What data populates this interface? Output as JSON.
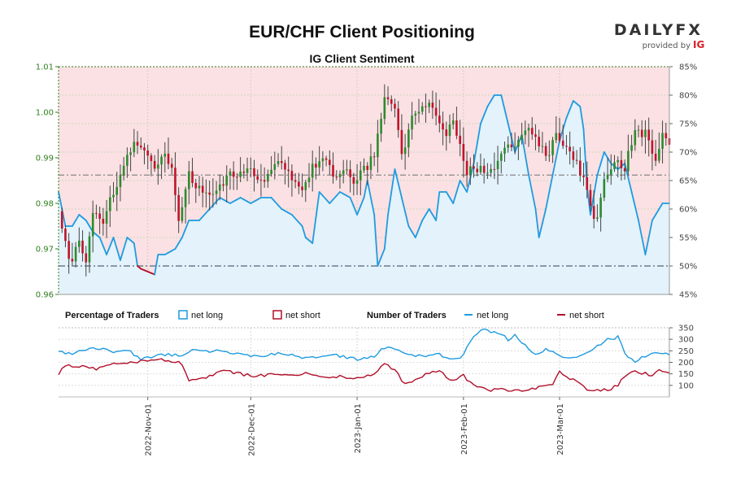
{
  "chart_data": {
    "type": "candlestick",
    "title": "EUR/CHF Client Positioning",
    "subtitle": "IG Client Sentiment",
    "brand": {
      "name": "DAILYFX",
      "tagline": "provided by",
      "partner": "IG"
    },
    "price_axis": {
      "ylim": [
        0.96,
        1.01
      ],
      "ticks": [
        "0.96",
        "0.97",
        "0.98",
        "0.99",
        "1.00",
        "1.01"
      ],
      "color": "#2e7d1e"
    },
    "pct_axis": {
      "ylim": [
        45,
        85
      ],
      "ticks": [
        "45%",
        "50%",
        "55%",
        "60%",
        "65%",
        "70%",
        "75%",
        "80%",
        "85%"
      ]
    },
    "traders_axis": {
      "ylim": [
        50,
        350
      ],
      "ticks": [
        "100",
        "150",
        "200",
        "250",
        "300",
        "350"
      ]
    },
    "x_axis": {
      "ticks": [
        "2022-Nov-01",
        "2022-Dec-01",
        "2023-Jan-01",
        "2023-Feb-01",
        "2023-Mar-01"
      ],
      "tick_days": [
        26,
        56,
        87,
        118,
        146
      ],
      "total_days": 178
    },
    "reference_levels": {
      "price": 0.9862,
      "net_long_pct": 50
    },
    "legend": {
      "percentage_heading": "Percentage of Traders",
      "number_heading": "Number of Traders",
      "net_long": "net long",
      "net_short": "net short"
    },
    "colors": {
      "up": "#2e8b2e",
      "down": "#c0142c",
      "wick": "#444444",
      "net_long": "#1f9be0",
      "net_short": "#b0102a",
      "long_fill": "#e3f2fb",
      "short_fill": "#fbe1e3"
    },
    "price_anchors": [
      [
        0,
        0.9795
      ],
      [
        2,
        0.971
      ],
      [
        4,
        0.9665
      ],
      [
        6,
        0.972
      ],
      [
        8,
        0.968
      ],
      [
        10,
        0.978
      ],
      [
        13,
        0.976
      ],
      [
        16,
        0.983
      ],
      [
        19,
        0.988
      ],
      [
        22,
        0.994
      ],
      [
        25,
        0.991
      ],
      [
        28,
        0.987
      ],
      [
        30,
        0.991
      ],
      [
        33,
        0.988
      ],
      [
        35,
        0.975
      ],
      [
        38,
        0.986
      ],
      [
        41,
        0.983
      ],
      [
        44,
        0.981
      ],
      [
        47,
        0.983
      ],
      [
        50,
        0.986
      ],
      [
        53,
        0.987
      ],
      [
        56,
        0.988
      ],
      [
        59,
        0.985
      ],
      [
        62,
        0.987
      ],
      [
        65,
        0.989
      ],
      [
        68,
        0.985
      ],
      [
        71,
        0.983
      ],
      [
        74,
        0.988
      ],
      [
        77,
        0.99
      ],
      [
        80,
        0.986
      ],
      [
        83,
        0.988
      ],
      [
        86,
        0.984
      ],
      [
        89,
        0.987
      ],
      [
        92,
        0.991
      ],
      [
        95,
        1.003
      ],
      [
        98,
        1.001
      ],
      [
        100,
        0.99
      ],
      [
        103,
        0.999
      ],
      [
        106,
        1.002
      ],
      [
        109,
        1.001
      ],
      [
        112,
        0.995
      ],
      [
        115,
        0.998
      ],
      [
        117,
        0.992
      ],
      [
        119,
        0.987
      ],
      [
        122,
        0.988
      ],
      [
        125,
        0.987
      ],
      [
        128,
        0.989
      ],
      [
        131,
        0.992
      ],
      [
        134,
        0.994
      ],
      [
        137,
        0.997
      ],
      [
        140,
        0.993
      ],
      [
        143,
        0.991
      ],
      [
        145,
        0.995
      ],
      [
        148,
        0.993
      ],
      [
        151,
        0.989
      ],
      [
        153,
        0.985
      ],
      [
        155,
        0.979
      ],
      [
        157,
        0.976
      ],
      [
        159,
        0.986
      ],
      [
        162,
        0.989
      ],
      [
        165,
        0.988
      ],
      [
        168,
        0.996
      ],
      [
        171,
        0.995
      ],
      [
        174,
        0.989
      ],
      [
        176,
        0.996
      ],
      [
        178,
        0.994
      ]
    ],
    "pct_long_anchors": [
      [
        0,
        63
      ],
      [
        2,
        57
      ],
      [
        4,
        57
      ],
      [
        6,
        59
      ],
      [
        8,
        58
      ],
      [
        10,
        56
      ],
      [
        12,
        55
      ],
      [
        14,
        52
      ],
      [
        16,
        55
      ],
      [
        18,
        51
      ],
      [
        20,
        55
      ],
      [
        22,
        54
      ],
      [
        23,
        50
      ],
      [
        24,
        49.5
      ],
      [
        26,
        49
      ],
      [
        28,
        48.5
      ],
      [
        29,
        52
      ],
      [
        31,
        52
      ],
      [
        34,
        53
      ],
      [
        36,
        55
      ],
      [
        38,
        58
      ],
      [
        41,
        58
      ],
      [
        44,
        60
      ],
      [
        47,
        62
      ],
      [
        50,
        61
      ],
      [
        53,
        62
      ],
      [
        56,
        61
      ],
      [
        59,
        62
      ],
      [
        62,
        62
      ],
      [
        65,
        60
      ],
      [
        68,
        59
      ],
      [
        71,
        57
      ],
      [
        72,
        55
      ],
      [
        74,
        54
      ],
      [
        76,
        63
      ],
      [
        79,
        61
      ],
      [
        82,
        63
      ],
      [
        85,
        62
      ],
      [
        87,
        59
      ],
      [
        89,
        62
      ],
      [
        90,
        65
      ],
      [
        92,
        59
      ],
      [
        93,
        50
      ],
      [
        95,
        53
      ],
      [
        96,
        59
      ],
      [
        98,
        67
      ],
      [
        100,
        62
      ],
      [
        102,
        57
      ],
      [
        104,
        55
      ],
      [
        106,
        58
      ],
      [
        108,
        60
      ],
      [
        110,
        58
      ],
      [
        111,
        63
      ],
      [
        113,
        63
      ],
      [
        115,
        61
      ],
      [
        117,
        65
      ],
      [
        119,
        63
      ],
      [
        121,
        68
      ],
      [
        123,
        75
      ],
      [
        125,
        78
      ],
      [
        127,
        80
      ],
      [
        129,
        80
      ],
      [
        131,
        75
      ],
      [
        133,
        70
      ],
      [
        135,
        73
      ],
      [
        137,
        66
      ],
      [
        139,
        60
      ],
      [
        140,
        55
      ],
      [
        142,
        60
      ],
      [
        144,
        66
      ],
      [
        146,
        72
      ],
      [
        148,
        76
      ],
      [
        150,
        79
      ],
      [
        152,
        78
      ],
      [
        153,
        74
      ],
      [
        154,
        64
      ],
      [
        155,
        59
      ],
      [
        157,
        66
      ],
      [
        159,
        70
      ],
      [
        161,
        68
      ],
      [
        163,
        67
      ],
      [
        165,
        68
      ],
      [
        167,
        63
      ],
      [
        169,
        58
      ],
      [
        171,
        52
      ],
      [
        173,
        58
      ],
      [
        175,
        60
      ],
      [
        176,
        61
      ]
    ],
    "long_count_anchors": [
      [
        0,
        250
      ],
      [
        4,
        235
      ],
      [
        8,
        255
      ],
      [
        12,
        260
      ],
      [
        16,
        245
      ],
      [
        20,
        255
      ],
      [
        24,
        215
      ],
      [
        28,
        225
      ],
      [
        32,
        235
      ],
      [
        36,
        230
      ],
      [
        40,
        260
      ],
      [
        44,
        250
      ],
      [
        48,
        245
      ],
      [
        52,
        240
      ],
      [
        56,
        230
      ],
      [
        60,
        225
      ],
      [
        64,
        240
      ],
      [
        68,
        230
      ],
      [
        72,
        215
      ],
      [
        76,
        225
      ],
      [
        80,
        235
      ],
      [
        84,
        220
      ],
      [
        88,
        215
      ],
      [
        92,
        225
      ],
      [
        95,
        265
      ],
      [
        98,
        255
      ],
      [
        102,
        230
      ],
      [
        106,
        225
      ],
      [
        110,
        240
      ],
      [
        114,
        215
      ],
      [
        117,
        220
      ],
      [
        119,
        260
      ],
      [
        121,
        310
      ],
      [
        123,
        345
      ],
      [
        126,
        335
      ],
      [
        129,
        325
      ],
      [
        131,
        300
      ],
      [
        133,
        320
      ],
      [
        136,
        270
      ],
      [
        139,
        235
      ],
      [
        142,
        255
      ],
      [
        145,
        240
      ],
      [
        148,
        215
      ],
      [
        151,
        225
      ],
      [
        154,
        240
      ],
      [
        157,
        270
      ],
      [
        160,
        300
      ],
      [
        163,
        310
      ],
      [
        165,
        240
      ],
      [
        168,
        205
      ],
      [
        171,
        225
      ],
      [
        174,
        245
      ],
      [
        176,
        235
      ]
    ],
    "short_count_anchors": [
      [
        0,
        150
      ],
      [
        2,
        185
      ],
      [
        5,
        180
      ],
      [
        8,
        180
      ],
      [
        11,
        170
      ],
      [
        14,
        190
      ],
      [
        18,
        195
      ],
      [
        22,
        200
      ],
      [
        25,
        210
      ],
      [
        28,
        215
      ],
      [
        32,
        210
      ],
      [
        36,
        195
      ],
      [
        38,
        120
      ],
      [
        40,
        125
      ],
      [
        44,
        140
      ],
      [
        48,
        160
      ],
      [
        52,
        155
      ],
      [
        56,
        140
      ],
      [
        60,
        145
      ],
      [
        64,
        150
      ],
      [
        68,
        145
      ],
      [
        72,
        150
      ],
      [
        76,
        135
      ],
      [
        80,
        140
      ],
      [
        84,
        135
      ],
      [
        88,
        130
      ],
      [
        92,
        150
      ],
      [
        95,
        195
      ],
      [
        98,
        165
      ],
      [
        101,
        105
      ],
      [
        104,
        120
      ],
      [
        108,
        155
      ],
      [
        111,
        160
      ],
      [
        114,
        130
      ],
      [
        116,
        120
      ],
      [
        118,
        145
      ],
      [
        120,
        110
      ],
      [
        123,
        95
      ],
      [
        126,
        80
      ],
      [
        129,
        90
      ],
      [
        132,
        75
      ],
      [
        135,
        80
      ],
      [
        138,
        85
      ],
      [
        141,
        95
      ],
      [
        144,
        110
      ],
      [
        146,
        160
      ],
      [
        148,
        135
      ],
      [
        151,
        115
      ],
      [
        153,
        95
      ],
      [
        155,
        75
      ],
      [
        158,
        80
      ],
      [
        161,
        85
      ],
      [
        163,
        100
      ],
      [
        165,
        140
      ],
      [
        167,
        160
      ],
      [
        170,
        155
      ],
      [
        173,
        140
      ],
      [
        175,
        170
      ],
      [
        177,
        160
      ]
    ]
  }
}
